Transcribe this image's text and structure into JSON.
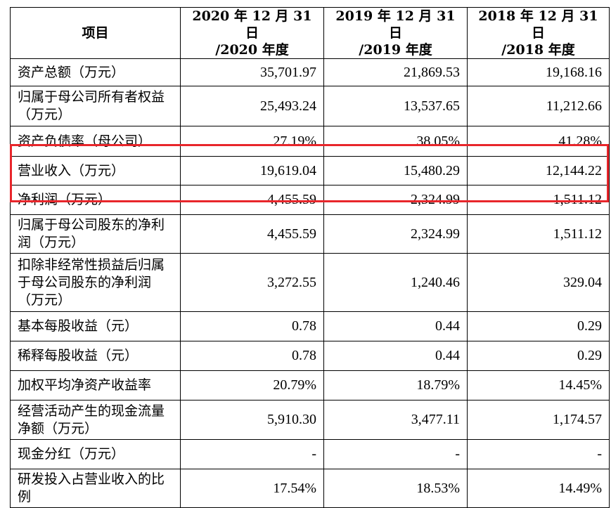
{
  "header": {
    "item": "项目",
    "col1_line1": "2020 年 12 月 31 日",
    "col1_line2": "/2020 年度",
    "col2_line1": "2019 年 12 月 31 日",
    "col2_line2": "/2019 年度",
    "col3_line1": "2018 年 12 月 31 日",
    "col3_line2": "/2018 年度"
  },
  "rows": [
    {
      "label": "资产总额（万元）",
      "v2020": "35,701.97",
      "v2019": "21,869.53",
      "v2018": "19,168.16"
    },
    {
      "label": "归属于母公司所有者权益（万元）",
      "v2020": "25,493.24",
      "v2019": "13,537.65",
      "v2018": "11,212.66"
    },
    {
      "label": "资产负债率（母公司）",
      "v2020": "27.19%",
      "v2019": "38.05%",
      "v2018": "41.28%"
    },
    {
      "label": "营业收入（万元）",
      "v2020": "19,619.04",
      "v2019": "15,480.29",
      "v2018": "12,144.22"
    },
    {
      "label": "净利润（万元）",
      "v2020": "4,455.59",
      "v2019": "2,324.99",
      "v2018": "1,511.12"
    },
    {
      "label": "归属于母公司股东的净利润（万元）",
      "v2020": "4,455.59",
      "v2019": "2,324.99",
      "v2018": "1,511.12"
    },
    {
      "label": "扣除非经常性损益后归属于母公司股东的净利润（万元）",
      "v2020": "3,272.55",
      "v2019": "1,240.46",
      "v2018": "329.04"
    },
    {
      "label": "基本每股收益（元）",
      "v2020": "0.78",
      "v2019": "0.44",
      "v2018": "0.29"
    },
    {
      "label": "稀释每股收益（元）",
      "v2020": "0.78",
      "v2019": "0.44",
      "v2018": "0.29"
    },
    {
      "label": "加权平均净资产收益率",
      "v2020": "20.79%",
      "v2019": "18.79%",
      "v2018": "14.45%"
    },
    {
      "label": "经营活动产生的现金流量净额（万元）",
      "v2020": "5,910.30",
      "v2019": "3,477.11",
      "v2018": "1,174.57"
    },
    {
      "label": "现金分红（万元）",
      "v2020": "-",
      "v2019": "-",
      "v2018": "-"
    },
    {
      "label": "研发投入占营业收入的比例",
      "v2020": "17.54%",
      "v2019": "18.53%",
      "v2018": "14.49%"
    }
  ],
  "highlight_color": "#e8262b"
}
